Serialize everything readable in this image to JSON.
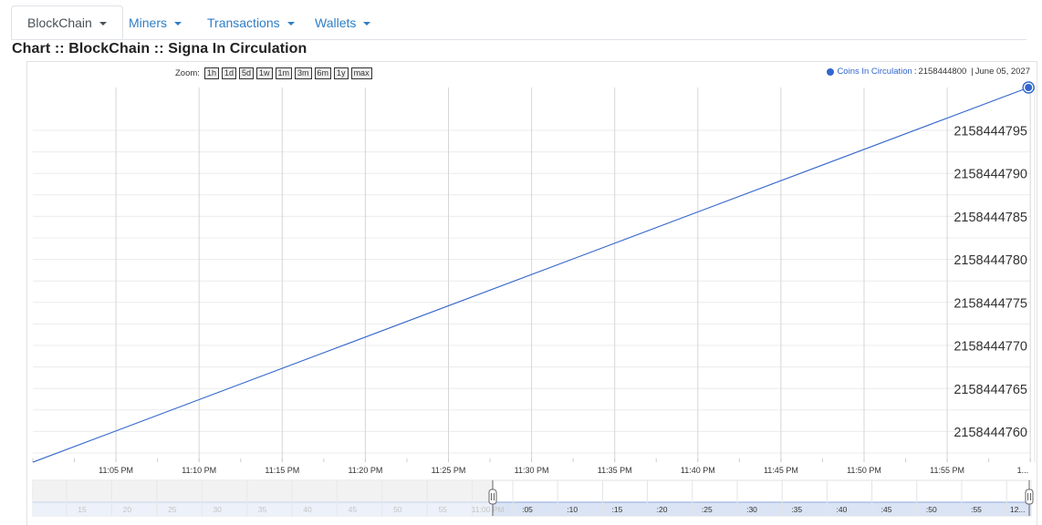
{
  "nav": {
    "tabs": [
      {
        "label": "BlockChain",
        "active": true
      },
      {
        "label": "Miners",
        "active": false
      },
      {
        "label": "Transactions",
        "active": false
      },
      {
        "label": "Wallets",
        "active": false
      }
    ]
  },
  "page_title": "Chart :: BlockChain :: Signa In Circulation",
  "zoom": {
    "label": "Zoom:",
    "options": [
      "1h",
      "1d",
      "5d",
      "1w",
      "1m",
      "3m",
      "6m",
      "1y",
      "max"
    ]
  },
  "legend": {
    "series_name": "Coins In Circulation",
    "separator": ":",
    "value": "2158444800",
    "date_separator": "|",
    "date": "June 05, 2027",
    "color": "#3366cc"
  },
  "chart_data": {
    "type": "line",
    "series": [
      {
        "name": "Coins In Circulation",
        "color": "#3366cc",
        "x": [
          "11:00 PM",
          "12:00 AM"
        ],
        "y": [
          2158444756.5,
          2158444800
        ]
      }
    ],
    "x_tick_labels": [
      "11:05 PM",
      "11:10 PM",
      "11:15 PM",
      "11:20 PM",
      "11:25 PM",
      "11:30 PM",
      "11:35 PM",
      "11:40 PM",
      "11:45 PM",
      "11:50 PM",
      "11:55 PM",
      "1..."
    ],
    "y_tick_labels": [
      "2158444795",
      "2158444790",
      "2158444785",
      "2158444780",
      "2158444775",
      "2158444770",
      "2158444765",
      "2158444760"
    ],
    "y_tick_values": [
      2158444795,
      2158444790,
      2158444785,
      2158444780,
      2158444775,
      2158444770,
      2158444765,
      2158444760
    ],
    "ylim": [
      2158444756.5,
      2158444800
    ],
    "grid": true,
    "legend_position": "top-right",
    "range_selector": {
      "left_labels": [
        "15",
        "20",
        "25",
        "30",
        "35",
        "40",
        "45",
        "50",
        "55",
        "11:00 PM"
      ],
      "right_labels": [
        ":05",
        ":10",
        ":15",
        ":20",
        ":25",
        ":30",
        ":35",
        ":40",
        ":45",
        ":50",
        ":55",
        "12..."
      ]
    }
  }
}
